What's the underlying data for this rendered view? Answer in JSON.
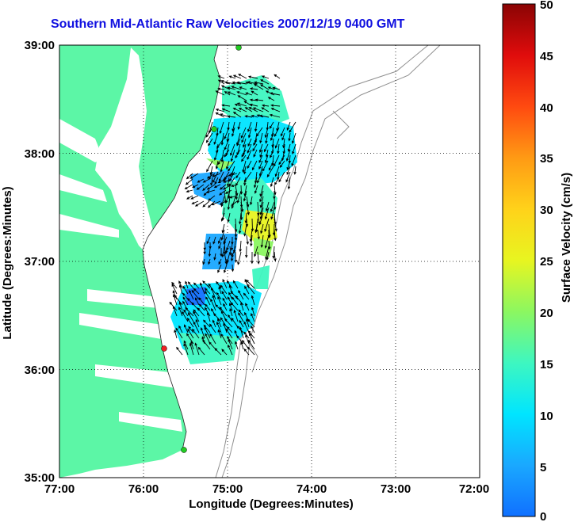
{
  "title": "Southern Mid-Atlantic Raw Velocities 2007/12/19 0400 GMT",
  "x_axis": {
    "label": "Longitude (Degrees:Minutes)",
    "ticks": [
      "77:00",
      "76:00",
      "75:00",
      "74:00",
      "73:00",
      "72:00"
    ]
  },
  "y_axis": {
    "label": "Latitude (Degrees:Minutes)",
    "ticks": [
      "39:00",
      "38:00",
      "37:00",
      "36:00",
      "35:00"
    ]
  },
  "colorbar": {
    "label": "Surface Velocity (cm/s)",
    "ticks": [
      "50",
      "45",
      "40",
      "35",
      "30",
      "25",
      "20",
      "15",
      "10",
      "5",
      "0"
    ]
  },
  "colors": {
    "title": "#1010e0",
    "land": "#5cf6a6",
    "ocean": "#ffffff",
    "bathymetry": "#909090",
    "station_green": "#22cc22",
    "station_red": "#ee2222"
  },
  "map_data": {
    "lon_range": [
      -77,
      -72
    ],
    "lat_range": [
      35,
      39
    ],
    "grid": true,
    "stations": [
      {
        "lon": -75.1,
        "lat": 38.98,
        "color": "green"
      },
      {
        "lon": -75.09,
        "lat": 38.22,
        "color": "green"
      },
      {
        "lon": -75.75,
        "lat": 36.17,
        "color": "red"
      },
      {
        "lon": -75.49,
        "lat": 35.25,
        "color": "green"
      }
    ]
  }
}
